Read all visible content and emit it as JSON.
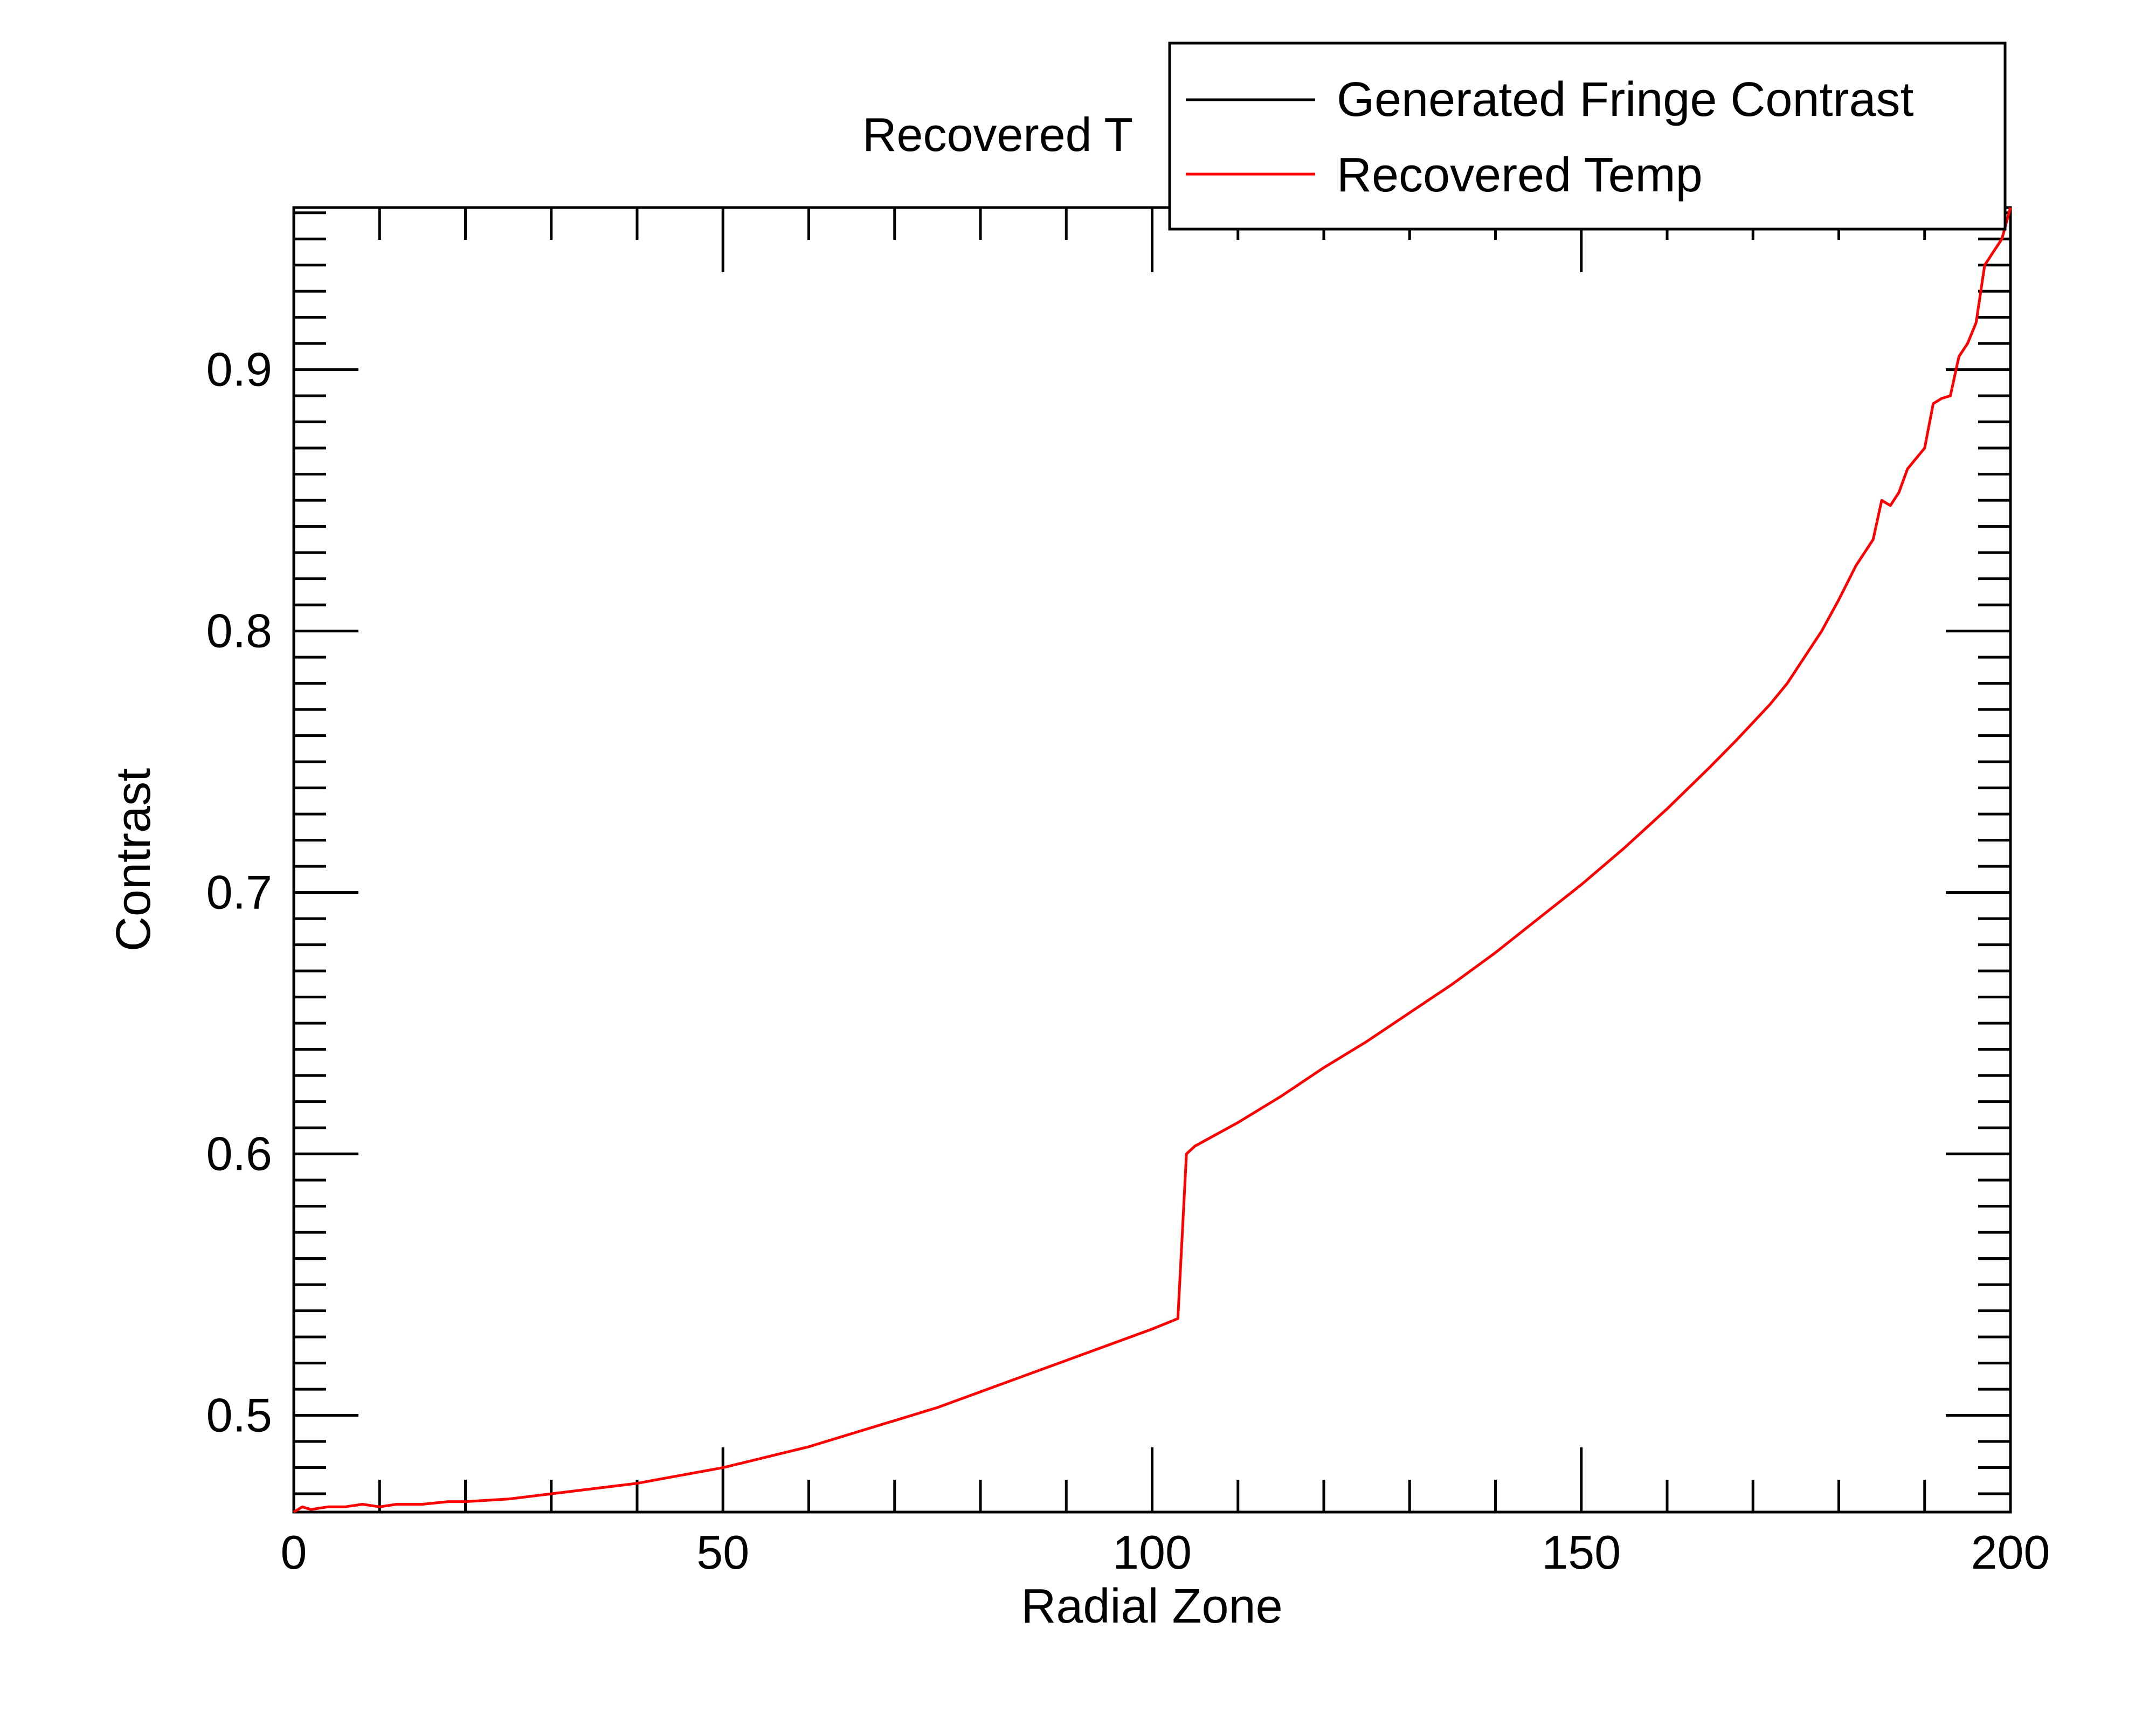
{
  "chart_data": {
    "type": "line",
    "title": "Recovered T",
    "xlabel": "Radial Zone",
    "ylabel": "Contrast",
    "xlim": [
      0,
      200
    ],
    "ylim": [
      0.463,
      0.962
    ],
    "x_ticks": [
      0,
      50,
      100,
      150,
      200
    ],
    "x_tick_labels": [
      "0",
      "50",
      "100",
      "150",
      "200"
    ],
    "y_ticks": [
      0.5,
      0.6,
      0.7,
      0.8,
      0.9
    ],
    "y_tick_labels": [
      "0.5",
      "0.6",
      "0.7",
      "0.8",
      "0.9"
    ],
    "grid": false,
    "legend": "top-right",
    "series": [
      {
        "name": "Generated Fringe Contrast",
        "color": "#000000",
        "x": [],
        "y": []
      },
      {
        "name": "Recovered Temp",
        "color": "#ff0000",
        "x": [
          0,
          1,
          2,
          4,
          6,
          8,
          10,
          12,
          15,
          18,
          20,
          25,
          30,
          35,
          40,
          45,
          50,
          55,
          60,
          65,
          70,
          75,
          80,
          85,
          90,
          95,
          100,
          103,
          104,
          105,
          110,
          115,
          120,
          125,
          130,
          135,
          140,
          145,
          150,
          155,
          160,
          165,
          168,
          170,
          172,
          174,
          176,
          178,
          180,
          182,
          184,
          185,
          186,
          187,
          188,
          189,
          190,
          191,
          192,
          193,
          194,
          195,
          196,
          197,
          198,
          199,
          200
        ],
        "y": [
          0.463,
          0.465,
          0.464,
          0.465,
          0.465,
          0.466,
          0.465,
          0.466,
          0.466,
          0.467,
          0.467,
          0.468,
          0.47,
          0.472,
          0.474,
          0.477,
          0.48,
          0.484,
          0.488,
          0.493,
          0.498,
          0.503,
          0.509,
          0.515,
          0.521,
          0.527,
          0.533,
          0.537,
          0.6,
          0.603,
          0.612,
          0.622,
          0.633,
          0.643,
          0.654,
          0.665,
          0.677,
          0.69,
          0.703,
          0.717,
          0.732,
          0.748,
          0.758,
          0.765,
          0.772,
          0.78,
          0.79,
          0.8,
          0.812,
          0.825,
          0.835,
          0.85,
          0.848,
          0.853,
          0.862,
          0.866,
          0.87,
          0.887,
          0.889,
          0.89,
          0.905,
          0.91,
          0.918,
          0.94,
          0.945,
          0.95,
          0.962
        ]
      }
    ]
  }
}
